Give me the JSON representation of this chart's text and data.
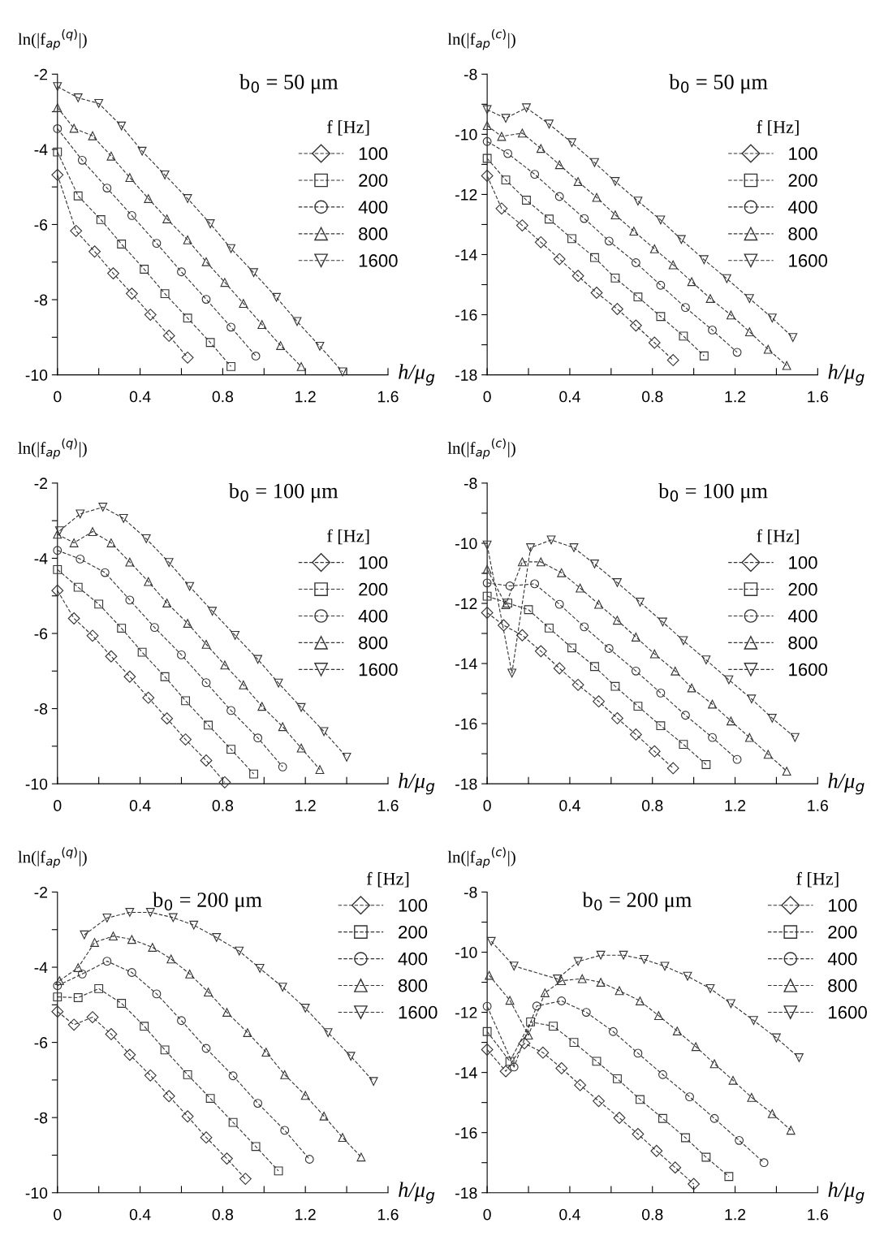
{
  "chart_data": [
    {
      "type": "line",
      "title": "b$_{0}$ = 50 μm",
      "xlabel": "h/μ$_{g}$",
      "ylabel": "ln(|f$_{ap}$$^{(q)}$|)",
      "legend_title": "f [Hz]",
      "legend": "top right",
      "line_style": "dashed",
      "xlim": [
        0,
        1.6
      ],
      "ylim": [
        -10,
        -2
      ],
      "xticks": [
        0,
        {
          "value": 0.2,
          "label": null
        },
        0.4,
        {
          "value": 0.6,
          "label": null
        },
        0.8,
        {
          "value": 1.0,
          "label": null
        },
        1.2,
        {
          "value": 1.4,
          "label": null
        },
        1.6
      ],
      "yticks": [
        -10,
        {
          "value": -9,
          "label": null
        },
        -8,
        {
          "value": -7,
          "label": null
        },
        -6,
        {
          "value": -5,
          "label": null
        },
        -4,
        {
          "value": -3,
          "label": null
        },
        -2
      ],
      "series": [
        {
          "name": "100",
          "color": "#333333",
          "marker": "diamond",
          "x": [
            0,
            0.09,
            0.18,
            0.27,
            0.36,
            0.45,
            0.54,
            0.63
          ],
          "values": [
            -4.68,
            -6.17,
            -6.72,
            -7.3,
            -7.84,
            -8.4,
            -8.96,
            -9.54
          ]
        },
        {
          "name": "200",
          "color": "#333333",
          "marker": "square",
          "x": [
            0,
            0.1,
            0.21,
            0.31,
            0.42,
            0.52,
            0.63,
            0.74,
            0.84
          ],
          "values": [
            -4.07,
            -5.24,
            -5.87,
            -6.52,
            -7.19,
            -7.84,
            -8.49,
            -9.14,
            -9.78
          ]
        },
        {
          "name": "400",
          "color": "#333333",
          "marker": "circle",
          "x": [
            0,
            0.12,
            0.24,
            0.36,
            0.48,
            0.6,
            0.72,
            0.84,
            0.96
          ],
          "values": [
            -3.45,
            -4.29,
            -5.03,
            -5.76,
            -6.5,
            -7.26,
            -7.99,
            -8.73,
            -9.5
          ]
        },
        {
          "name": "800",
          "color": "#333333",
          "marker": "triangle",
          "x": [
            0,
            0.08,
            0.17,
            0.26,
            0.35,
            0.44,
            0.53,
            0.63,
            0.72,
            0.81,
            0.9,
            0.99,
            1.08,
            1.18
          ],
          "values": [
            -2.89,
            -3.44,
            -3.64,
            -4.18,
            -4.75,
            -5.31,
            -5.85,
            -6.41,
            -6.99,
            -7.54,
            -8.1,
            -8.66,
            -9.22,
            -9.78
          ]
        },
        {
          "name": "1600",
          "color": "#333333",
          "marker": "triangle_down",
          "x": [
            0,
            0.1,
            0.2,
            0.31,
            0.41,
            0.52,
            0.63,
            0.74,
            0.84,
            0.95,
            1.06,
            1.16,
            1.27,
            1.38
          ],
          "values": [
            -2.33,
            -2.63,
            -2.78,
            -3.38,
            -4.05,
            -4.68,
            -5.31,
            -5.98,
            -6.64,
            -7.28,
            -7.94,
            -8.58,
            -9.24,
            -9.92
          ]
        }
      ]
    },
    {
      "type": "line",
      "title": "b$_{0}$ = 50 μm",
      "xlabel": "h/μ$_{g}$",
      "ylabel": "ln(|f$_{ap}$$^{(c)}$|)",
      "legend_title": "f [Hz]",
      "legend": "top right",
      "line_style": "dashed",
      "xlim": [
        0,
        1.6
      ],
      "ylim": [
        -18,
        -8
      ],
      "xticks": [
        0,
        {
          "value": 0.2,
          "label": null
        },
        0.4,
        {
          "value": 0.6,
          "label": null
        },
        0.8,
        {
          "value": 1.0,
          "label": null
        },
        1.2,
        {
          "value": 1.4,
          "label": null
        },
        1.6
      ],
      "yticks": [
        -18,
        {
          "value": -17,
          "label": null
        },
        -16,
        {
          "value": -15,
          "label": null
        },
        -14,
        {
          "value": -13,
          "label": null
        },
        -12,
        {
          "value": -11,
          "label": null
        },
        -10,
        {
          "value": -9,
          "label": null
        },
        -8
      ],
      "series": [
        {
          "name": "100",
          "color": "#333333",
          "marker": "diamond",
          "x": [
            0,
            0.07,
            0.17,
            0.26,
            0.35,
            0.44,
            0.53,
            0.63,
            0.72,
            0.81,
            0.9
          ],
          "values": [
            -11.38,
            -12.47,
            -13.03,
            -13.59,
            -14.15,
            -14.71,
            -15.27,
            -15.81,
            -16.36,
            -16.93,
            -17.51
          ]
        },
        {
          "name": "200",
          "color": "#333333",
          "marker": "square",
          "x": [
            0,
            0.09,
            0.19,
            0.3,
            0.41,
            0.52,
            0.62,
            0.73,
            0.84,
            0.95,
            1.05
          ],
          "values": [
            -10.8,
            -11.52,
            -12.19,
            -12.82,
            -13.47,
            -14.1,
            -14.78,
            -15.41,
            -16.06,
            -16.71,
            -17.37
          ]
        },
        {
          "name": "400",
          "color": "#333333",
          "marker": "circle",
          "x": [
            0,
            0.1,
            0.23,
            0.35,
            0.47,
            0.59,
            0.72,
            0.84,
            0.96,
            1.09,
            1.21
          ],
          "values": [
            -10.24,
            -10.64,
            -11.33,
            -12.07,
            -12.8,
            -13.55,
            -14.27,
            -15.02,
            -15.76,
            -16.51,
            -17.25
          ]
        },
        {
          "name": "800",
          "color": "#333333",
          "marker": "triangle",
          "x": [
            0,
            0.07,
            0.17,
            0.26,
            0.35,
            0.44,
            0.53,
            0.62,
            0.71,
            0.81,
            0.9,
            0.99,
            1.08,
            1.18,
            1.27,
            1.36,
            1.45
          ],
          "values": [
            -9.71,
            -10.07,
            -9.96,
            -10.47,
            -11.01,
            -11.57,
            -12.1,
            -12.68,
            -13.22,
            -13.81,
            -14.34,
            -14.9,
            -15.46,
            -16.01,
            -16.57,
            -17.15,
            -17.69
          ]
        },
        {
          "name": "1600",
          "color": "#333333",
          "marker": "triangle_down",
          "x": [
            0,
            0.09,
            0.19,
            0.3,
            0.41,
            0.52,
            0.62,
            0.73,
            0.84,
            0.94,
            1.05,
            1.16,
            1.27,
            1.38,
            1.48
          ],
          "values": [
            -9.18,
            -9.47,
            -9.12,
            -9.66,
            -10.28,
            -10.94,
            -11.57,
            -12.22,
            -12.85,
            -13.5,
            -14.17,
            -14.8,
            -15.46,
            -16.11,
            -16.76
          ]
        }
      ]
    },
    {
      "type": "line",
      "title": "b$_{0}$ = 100 μm",
      "xlabel": "h/μ$_{g}$",
      "ylabel": "ln(|f$_{ap}$$^{(q)}$|)",
      "legend_title": "f [Hz]",
      "legend": "top right",
      "line_style": "dashed",
      "xlim": [
        0,
        1.6
      ],
      "ylim": [
        -10,
        -2
      ],
      "xticks": [
        0,
        {
          "value": 0.2,
          "label": null
        },
        0.4,
        {
          "value": 0.6,
          "label": null
        },
        0.8,
        {
          "value": 1.0,
          "label": null
        },
        1.2,
        {
          "value": 1.4,
          "label": null
        },
        1.6
      ],
      "yticks": [
        -10,
        {
          "value": -9,
          "label": null
        },
        -8,
        {
          "value": -7,
          "label": null
        },
        -6,
        {
          "value": -5,
          "label": null
        },
        -4,
        {
          "value": -3,
          "label": null
        },
        -2
      ],
      "series": [
        {
          "name": "100",
          "color": "#333333",
          "marker": "diamond",
          "x": [
            0,
            0.08,
            0.17,
            0.26,
            0.35,
            0.44,
            0.53,
            0.62,
            0.72,
            0.81
          ],
          "values": [
            -4.86,
            -5.6,
            -6.06,
            -6.61,
            -7.15,
            -7.71,
            -8.26,
            -8.82,
            -9.38,
            -9.96
          ]
        },
        {
          "name": "200",
          "color": "#333333",
          "marker": "square",
          "x": [
            0,
            0.1,
            0.2,
            0.31,
            0.41,
            0.52,
            0.62,
            0.73,
            0.84,
            0.95
          ],
          "values": [
            -4.3,
            -4.77,
            -5.22,
            -5.86,
            -6.5,
            -7.15,
            -7.79,
            -8.44,
            -9.08,
            -9.74
          ]
        },
        {
          "name": "400",
          "color": "#333333",
          "marker": "circle",
          "x": [
            0,
            0.11,
            0.23,
            0.35,
            0.47,
            0.6,
            0.72,
            0.84,
            0.97,
            1.09
          ],
          "values": [
            -3.79,
            -4.02,
            -4.38,
            -5.11,
            -5.84,
            -6.57,
            -7.31,
            -8.05,
            -8.78,
            -9.55
          ]
        },
        {
          "name": "800",
          "color": "#333333",
          "marker": "triangle",
          "x": [
            0,
            0.08,
            0.17,
            0.26,
            0.35,
            0.44,
            0.53,
            0.63,
            0.72,
            0.81,
            0.9,
            0.99,
            1.09,
            1.18,
            1.27
          ],
          "values": [
            -3.36,
            -3.59,
            -3.29,
            -3.59,
            -4.1,
            -4.62,
            -5.19,
            -5.73,
            -6.29,
            -6.84,
            -7.37,
            -7.94,
            -8.48,
            -9.05,
            -9.62
          ]
        },
        {
          "name": "1600",
          "color": "#333333",
          "marker": "triangle_down",
          "x": [
            0.01,
            0.11,
            0.22,
            0.32,
            0.43,
            0.54,
            0.64,
            0.75,
            0.86,
            0.97,
            1.07,
            1.18,
            1.29,
            1.4
          ],
          "values": [
            -3.27,
            -2.82,
            -2.64,
            -2.94,
            -3.48,
            -4.11,
            -4.75,
            -5.41,
            -6.05,
            -6.69,
            -7.32,
            -7.97,
            -8.61,
            -9.29
          ]
        }
      ]
    },
    {
      "type": "line",
      "title": "b$_{0}$ = 100 μm",
      "xlabel": "h/μ$_{g}$",
      "ylabel": "ln(|f$_{ap}$$^{(c)}$|)",
      "legend_title": "f [Hz]",
      "legend": "top right",
      "line_style": "dashed",
      "xlim": [
        0,
        1.6
      ],
      "ylim": [
        -18,
        -8
      ],
      "xticks": [
        0,
        {
          "value": 0.2,
          "label": null
        },
        0.4,
        {
          "value": 0.6,
          "label": null
        },
        0.8,
        {
          "value": 1.0,
          "label": null
        },
        1.2,
        {
          "value": 1.4,
          "label": null
        },
        1.6
      ],
      "yticks": [
        -18,
        {
          "value": -17,
          "label": null
        },
        -16,
        {
          "value": -15,
          "label": null
        },
        -14,
        {
          "value": -13,
          "label": null
        },
        -12,
        {
          "value": -11,
          "label": null
        },
        -10,
        {
          "value": -9,
          "label": null
        },
        -8
      ],
      "series": [
        {
          "name": "100",
          "color": "#333333",
          "marker": "diamond",
          "x": [
            0,
            0.08,
            0.17,
            0.26,
            0.35,
            0.44,
            0.54,
            0.63,
            0.72,
            0.81,
            0.9
          ],
          "values": [
            -12.31,
            -12.73,
            -13.06,
            -13.59,
            -14.16,
            -14.71,
            -15.26,
            -15.82,
            -16.36,
            -16.92,
            -17.48
          ]
        },
        {
          "name": "200",
          "color": "#333333",
          "marker": "square",
          "x": [
            0,
            0.1,
            0.2,
            0.3,
            0.41,
            0.52,
            0.62,
            0.73,
            0.84,
            0.95,
            1.06
          ],
          "values": [
            -11.76,
            -11.99,
            -12.21,
            -12.82,
            -13.48,
            -14.1,
            -14.76,
            -15.42,
            -16.07,
            -16.69,
            -17.36
          ]
        },
        {
          "name": "400",
          "color": "#333333",
          "marker": "circle",
          "x": [
            0,
            0.11,
            0.23,
            0.35,
            0.47,
            0.59,
            0.72,
            0.84,
            0.96,
            1.09,
            1.21
          ],
          "values": [
            -11.32,
            -11.42,
            -11.35,
            -12.03,
            -12.78,
            -13.5,
            -14.25,
            -14.98,
            -15.72,
            -16.46,
            -17.19
          ]
        },
        {
          "name": "800",
          "color": "#333333",
          "marker": "triangle",
          "x": [
            0,
            0.09,
            0.17,
            0.26,
            0.36,
            0.45,
            0.54,
            0.63,
            0.72,
            0.81,
            0.91,
            0.99,
            1.09,
            1.18,
            1.27,
            1.36,
            1.45
          ],
          "values": [
            -10.87,
            -12.04,
            -10.62,
            -10.62,
            -10.98,
            -11.49,
            -12.03,
            -12.56,
            -13.12,
            -13.68,
            -14.25,
            -14.81,
            -15.35,
            -15.91,
            -16.46,
            -17.02,
            -17.58
          ]
        },
        {
          "name": "1600",
          "color": "#333333",
          "marker": "triangle_down",
          "x": [
            0,
            0.12,
            0.21,
            0.31,
            0.42,
            0.52,
            0.63,
            0.74,
            0.85,
            0.95,
            1.06,
            1.17,
            1.28,
            1.38,
            1.49
          ],
          "values": [
            -10.06,
            -14.32,
            -10.15,
            -9.89,
            -10.15,
            -10.69,
            -11.31,
            -11.96,
            -12.62,
            -13.24,
            -13.88,
            -14.54,
            -15.18,
            -15.82,
            -16.46
          ]
        }
      ]
    },
    {
      "type": "line",
      "title": "b$_{0}$ = 200 μm",
      "xlabel": "h/μ$_{g}$",
      "ylabel": "ln(|f$_{ap}$$^{(q)}$|)",
      "legend_title": "f [Hz]",
      "legend": "top right",
      "line_style": "dashed",
      "xlim": [
        0,
        1.6
      ],
      "ylim": [
        -10,
        -2
      ],
      "xticks": [
        0,
        {
          "value": 0.2,
          "label": null
        },
        0.4,
        {
          "value": 0.6,
          "label": null
        },
        0.8,
        {
          "value": 1.0,
          "label": null
        },
        1.2,
        {
          "value": 1.4,
          "label": null
        },
        1.6
      ],
      "yticks": [
        -10,
        {
          "value": -9,
          "label": null
        },
        -8,
        {
          "value": -7,
          "label": null
        },
        -6,
        {
          "value": -5,
          "label": null
        },
        -4,
        {
          "value": -3,
          "label": null
        },
        -2
      ],
      "series": [
        {
          "name": "100",
          "color": "#333333",
          "marker": "diamond",
          "x": [
            0,
            0.08,
            0.17,
            0.26,
            0.35,
            0.45,
            0.54,
            0.63,
            0.72,
            0.82,
            0.91
          ],
          "values": [
            -5.18,
            -5.53,
            -5.33,
            -5.78,
            -6.33,
            -6.88,
            -7.43,
            -7.97,
            -8.53,
            -9.09,
            -9.63
          ]
        },
        {
          "name": "200",
          "color": "#333333",
          "marker": "square",
          "x": [
            0,
            0.1,
            0.2,
            0.31,
            0.42,
            0.52,
            0.63,
            0.74,
            0.85,
            0.96,
            1.07
          ],
          "values": [
            -4.79,
            -4.81,
            -4.57,
            -4.96,
            -5.57,
            -6.2,
            -6.86,
            -7.49,
            -8.13,
            -8.77,
            -9.42
          ]
        },
        {
          "name": "400",
          "color": "#333333",
          "marker": "circle",
          "x": [
            0,
            0.12,
            0.24,
            0.36,
            0.48,
            0.6,
            0.72,
            0.85,
            0.97,
            1.1,
            1.22
          ],
          "values": [
            -4.49,
            -4.18,
            -3.84,
            -4.14,
            -4.71,
            -5.42,
            -6.16,
            -6.89,
            -7.62,
            -8.34,
            -9.11
          ]
        },
        {
          "name": "800",
          "color": "#333333",
          "marker": "triangle",
          "x": [
            0.01,
            0.1,
            0.18,
            0.27,
            0.36,
            0.46,
            0.55,
            0.64,
            0.73,
            0.82,
            0.92,
            1.01,
            1.1,
            1.2,
            1.29,
            1.38,
            1.47
          ],
          "values": [
            -4.36,
            -4.01,
            -3.34,
            -3.17,
            -3.26,
            -3.47,
            -3.78,
            -4.18,
            -4.66,
            -5.2,
            -5.74,
            -6.26,
            -6.86,
            -7.41,
            -7.96,
            -8.53,
            -9.05
          ]
        },
        {
          "name": "1600",
          "color": "#333333",
          "marker": "triangle_down",
          "x": [
            0.13,
            0.24,
            0.35,
            0.45,
            0.56,
            0.66,
            0.77,
            0.88,
            0.98,
            1.09,
            1.2,
            1.31,
            1.42,
            1.53
          ],
          "values": [
            -3.14,
            -2.69,
            -2.54,
            -2.54,
            -2.68,
            -2.88,
            -3.21,
            -3.57,
            -4.03,
            -4.53,
            -5.09,
            -5.74,
            -6.37,
            -7.04
          ]
        }
      ]
    },
    {
      "type": "line",
      "title": "b$_{0}$ = 200 μm",
      "xlabel": "h/μ$_{g}$",
      "ylabel": "ln(|f$_{ap}$$^{(c)}$|)",
      "legend_title": "f [Hz]",
      "legend": "top right",
      "line_style": "dashed",
      "xlim": [
        0,
        1.6
      ],
      "ylim": [
        -18,
        -8
      ],
      "xticks": [
        0,
        {
          "value": 0.2,
          "label": null
        },
        0.4,
        {
          "value": 0.6,
          "label": null
        },
        0.8,
        {
          "value": 1.0,
          "label": null
        },
        1.2,
        {
          "value": 1.4,
          "label": null
        },
        1.6
      ],
      "yticks": [
        -18,
        {
          "value": -17,
          "label": null
        },
        -16,
        {
          "value": -15,
          "label": null
        },
        -14,
        {
          "value": -13,
          "label": null
        },
        -12,
        {
          "value": -11,
          "label": null
        },
        -10,
        {
          "value": -9,
          "label": null
        },
        -8
      ],
      "series": [
        {
          "name": "100",
          "color": "#333333",
          "marker": "diamond",
          "x": [
            0,
            0.09,
            0.18,
            0.27,
            0.36,
            0.45,
            0.54,
            0.64,
            0.73,
            0.82,
            0.91,
            1.0
          ],
          "values": [
            -13.24,
            -13.96,
            -13.03,
            -13.34,
            -13.86,
            -14.42,
            -14.95,
            -15.51,
            -16.05,
            -16.61,
            -17.16,
            -17.71
          ]
        },
        {
          "name": "200",
          "color": "#333333",
          "marker": "square",
          "x": [
            0,
            0.11,
            0.21,
            0.32,
            0.42,
            0.53,
            0.63,
            0.74,
            0.85,
            0.96,
            1.06,
            1.17
          ],
          "values": [
            -12.64,
            -13.63,
            -12.32,
            -12.46,
            -13.0,
            -13.63,
            -14.21,
            -14.9,
            -15.53,
            -16.17,
            -16.82,
            -17.46
          ]
        },
        {
          "name": "400",
          "color": "#333333",
          "marker": "circle",
          "x": [
            0,
            0.13,
            0.24,
            0.36,
            0.48,
            0.61,
            0.73,
            0.85,
            0.98,
            1.1,
            1.22,
            1.34
          ],
          "values": [
            -11.8,
            -13.82,
            -11.79,
            -11.62,
            -12.0,
            -12.64,
            -13.36,
            -14.07,
            -14.81,
            -15.53,
            -16.26,
            -17.0
          ]
        },
        {
          "name": "800",
          "color": "#333333",
          "marker": "triangle",
          "x": [
            0.01,
            0.11,
            0.2,
            0.28,
            0.36,
            0.46,
            0.55,
            0.64,
            0.74,
            0.83,
            0.92,
            1.01,
            1.1,
            1.19,
            1.28,
            1.38,
            1.47
          ],
          "values": [
            -10.77,
            -11.6,
            -12.76,
            -11.35,
            -10.95,
            -10.88,
            -11.0,
            -11.28,
            -11.62,
            -12.11,
            -12.62,
            -13.14,
            -13.71,
            -14.26,
            -14.83,
            -15.37,
            -15.92
          ]
        },
        {
          "name": "1600",
          "color": "#333333",
          "marker": "triangle_down",
          "x": [
            0.02,
            0.13,
            0.34,
            0.44,
            0.55,
            0.66,
            0.76,
            0.86,
            0.97,
            1.08,
            1.18,
            1.29,
            1.4,
            1.51
          ],
          "values": [
            -9.64,
            -10.46,
            -10.89,
            -10.31,
            -10.1,
            -10.1,
            -10.24,
            -10.47,
            -10.8,
            -11.21,
            -11.71,
            -12.27,
            -12.85,
            -13.51
          ]
        }
      ]
    }
  ]
}
